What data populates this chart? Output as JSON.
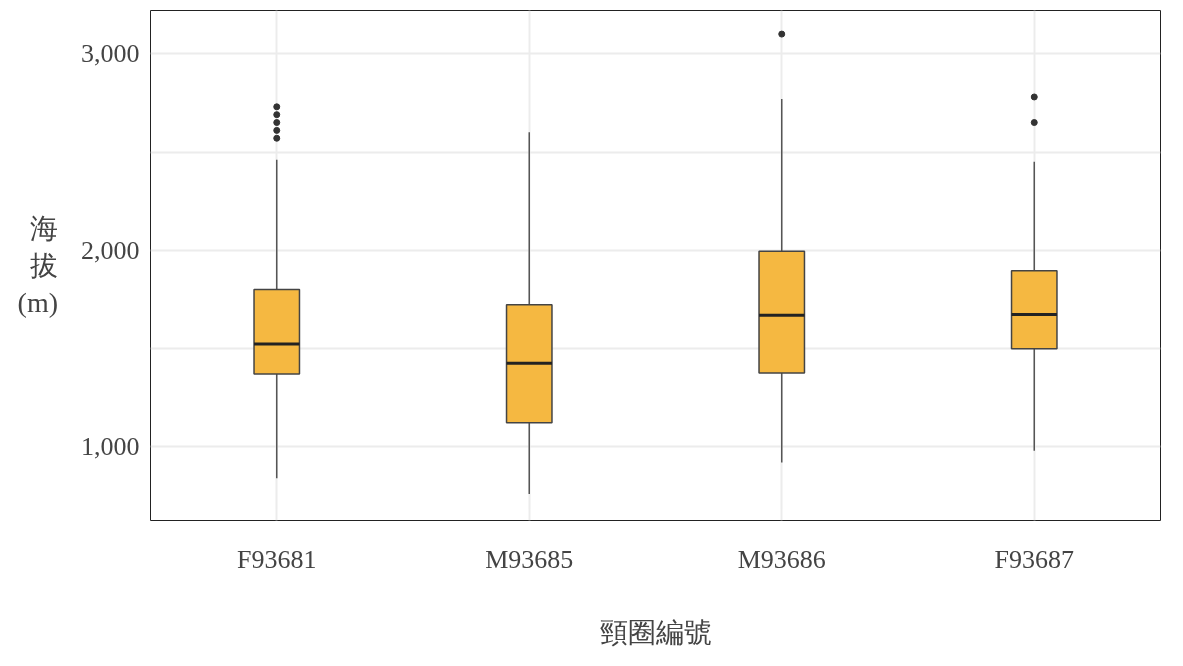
{
  "chart_data": {
    "type": "box",
    "xlabel": "頸圈編號",
    "ylabel": "海拔(m)",
    "categories": [
      "F93681",
      "M93685",
      "M93686",
      "F93687"
    ],
    "color": "#f5b841",
    "boxes": [
      {
        "low": 840,
        "q1": 1370,
        "median": 1523,
        "q3": 1800,
        "high": 2460,
        "outliers": [
          2570,
          2610,
          2650,
          2690,
          2730
        ]
      },
      {
        "low": 760,
        "q1": 1123,
        "median": 1425,
        "q3": 1723,
        "high": 2600
      },
      {
        "low": 920,
        "q1": 1375,
        "median": 1669,
        "q3": 1995,
        "high": 2770,
        "outliers": [
          3100
        ]
      },
      {
        "low": 980,
        "q1": 1499,
        "median": 1673,
        "q3": 1896,
        "high": 2450,
        "outliers": [
          2650,
          2780
        ]
      }
    ],
    "ylim": [
      625,
      3220
    ],
    "yticks": [
      {
        "value": 1000,
        "label": "1,000"
      },
      {
        "value": 1500,
        "label": null
      },
      {
        "value": 2000,
        "label": "2,000"
      },
      {
        "value": 2500,
        "label": null
      },
      {
        "value": 3000,
        "label": "3,000"
      }
    ],
    "grid": true
  }
}
